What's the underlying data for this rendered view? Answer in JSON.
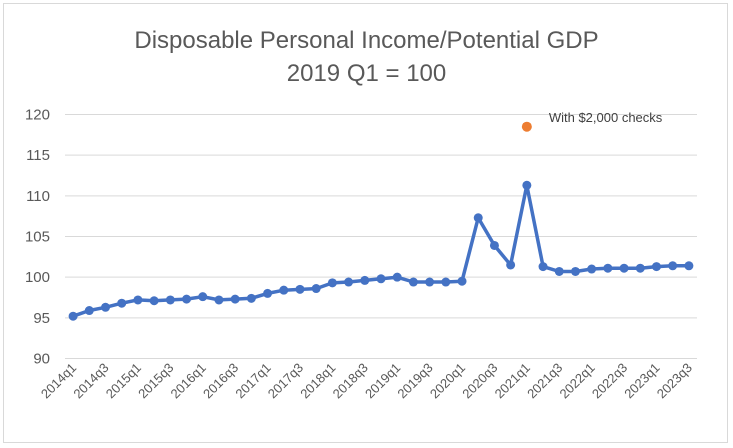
{
  "chart_data": {
    "type": "line",
    "title": "Disposable Personal Income/Potential GDP",
    "subtitle": "2019 Q1 = 100",
    "xlabel": "",
    "ylabel": "",
    "ylim": [
      90,
      120
    ],
    "yticks": [
      90,
      95,
      100,
      105,
      110,
      115,
      120
    ],
    "grid": true,
    "legend": "none",
    "colors": {
      "series": "#4472C4",
      "highlight": "#ED7D31",
      "grid": "#d9d9d9",
      "text": "#595959"
    },
    "categories": [
      "2014q1",
      "2014q2",
      "2014q3",
      "2014q4",
      "2015q1",
      "2015q2",
      "2015q3",
      "2015q4",
      "2016q1",
      "2016q2",
      "2016q3",
      "2016q4",
      "2017q1",
      "2017q2",
      "2017q3",
      "2017q4",
      "2018q1",
      "2018q2",
      "2018q3",
      "2018q4",
      "2019q1",
      "2019q2",
      "2019q3",
      "2019q4",
      "2020q1",
      "2020q2",
      "2020q3",
      "2020q4",
      "2021q1",
      "2021q2",
      "2021q3",
      "2021q4",
      "2022q1",
      "2022q2",
      "2022q3",
      "2022q4",
      "2023q1",
      "2023q2",
      "2023q3"
    ],
    "tick_labels": [
      "2014q1",
      "2014q3",
      "2015q1",
      "2015q3",
      "2016q1",
      "2016q3",
      "2017q1",
      "2017q3",
      "2018q1",
      "2018q3",
      "2019q1",
      "2019q3",
      "2020q1",
      "2020q3",
      "2021q1",
      "2021q3",
      "2022q1",
      "2022q3",
      "2023q1",
      "2023q3"
    ],
    "series": [
      {
        "values": [
          95.2,
          95.9,
          96.3,
          96.8,
          97.2,
          97.1,
          97.2,
          97.3,
          97.6,
          97.2,
          97.3,
          97.4,
          98.0,
          98.4,
          98.5,
          98.6,
          99.3,
          99.4,
          99.6,
          99.8,
          100.0,
          99.4,
          99.4,
          99.4,
          99.5,
          107.3,
          103.9,
          101.5,
          111.3,
          101.3,
          100.7,
          100.7,
          101.0,
          101.1,
          101.1,
          101.1,
          101.3,
          101.4,
          101.4
        ]
      }
    ],
    "highlight_point": {
      "category": "2021q1",
      "value": 118.5
    },
    "annotations": [
      {
        "text": "With $2,000 checks"
      }
    ]
  }
}
